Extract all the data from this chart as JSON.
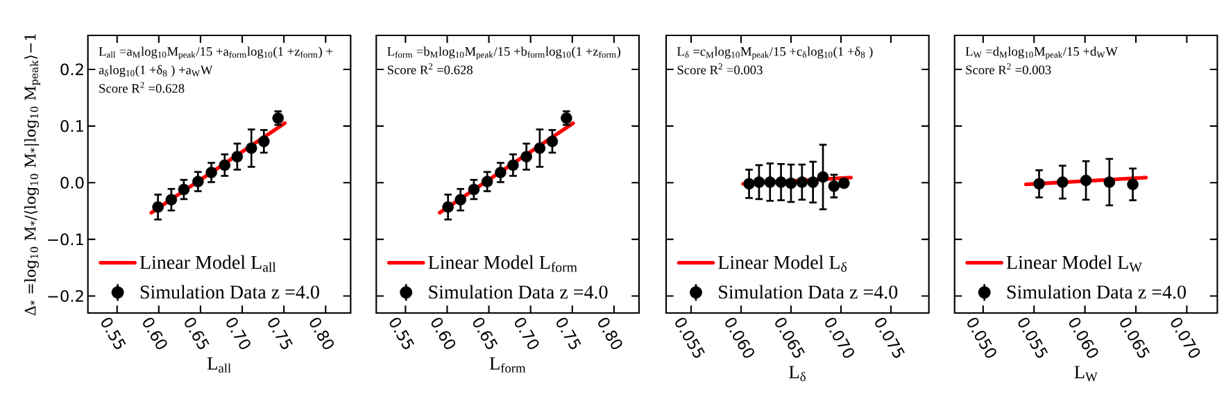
{
  "chart_data": [
    {
      "type": "scatter",
      "xlabel": "L$_{all}$",
      "ylabel": "Δ$_{*}$ =log$_{10}$ M$_{*}$/⟨log$_{10}$ M$_{*}$|log$_{10}$ M$_{peak}$⟩−1",
      "annotations": [
        "L$_{all}$ =a$_{M}$log$_{10}$M$_{peak}$/15 +a$_{form}$log$_{10}$(1 +z$_{form}$) +",
        "a$_{δ}$log$_{10}$(1 +δ$_{8}$ ) +a$_{W}$W",
        "Score R$^{2}$ =0.628"
      ],
      "xlim": [
        0.515,
        0.83
      ],
      "ylim": [
        -0.23,
        0.26
      ],
      "xticks": [
        {
          "value": 0.55,
          "label": "0.55"
        },
        {
          "value": 0.6,
          "label": "0.60"
        },
        {
          "value": 0.65,
          "label": "0.65"
        },
        {
          "value": 0.7,
          "label": "0.70"
        },
        {
          "value": 0.75,
          "label": "0.75"
        },
        {
          "value": 0.8,
          "label": "0.80"
        }
      ],
      "yticks": [
        {
          "value": -0.2,
          "label": "−0.2"
        },
        {
          "value": -0.1,
          "label": "−0.1"
        },
        {
          "value": 0,
          "label": "0.0"
        },
        {
          "value": 0.1,
          "label": "0.1"
        },
        {
          "value": 0.2,
          "label": "0.2"
        }
      ],
      "legend": "bottom left",
      "marker": "circle",
      "series": [
        {
          "name": "Linear Model L$_{all}$",
          "type": "line",
          "marker": "none",
          "color": "#ff0000",
          "x": [
            0.591,
            0.751
          ],
          "values": [
            -0.053,
            0.105
          ]
        },
        {
          "name": "Simulation Data z =4.0",
          "color": "#000000",
          "x": [
            0.599,
            0.615,
            0.63,
            0.647,
            0.663,
            0.679,
            0.694,
            0.711,
            0.726,
            0.743
          ],
          "values": [
            -0.043,
            -0.03,
            -0.012,
            0.002,
            0.018,
            0.031,
            0.046,
            0.061,
            0.073,
            0.114
          ],
          "errors": [
            0.022,
            0.019,
            0.017,
            0.017,
            0.017,
            0.019,
            0.023,
            0.033,
            0.02,
            0.012
          ]
        }
      ]
    },
    {
      "type": "scatter",
      "xlabel": "L$_{form}$",
      "annotations": [
        "L$_{form}$ =b$_{M}$log$_{10}$M$_{peak}$/15 +b$_{form}$log$_{10}$(1 +z$_{form}$)",
        "Score R$^{2}$ =0.628"
      ],
      "xlim": [
        0.515,
        0.83
      ],
      "ylim": [
        -0.23,
        0.26
      ],
      "xticks": [
        {
          "value": 0.55,
          "label": "0.55"
        },
        {
          "value": 0.6,
          "label": "0.60"
        },
        {
          "value": 0.65,
          "label": "0.65"
        },
        {
          "value": 0.7,
          "label": "0.70"
        },
        {
          "value": 0.75,
          "label": "0.75"
        },
        {
          "value": 0.8,
          "label": "0.80"
        }
      ],
      "yticks": [
        {
          "value": -0.2,
          "label": null
        },
        {
          "value": -0.1,
          "label": null
        },
        {
          "value": 0,
          "label": null
        },
        {
          "value": 0.1,
          "label": null
        },
        {
          "value": 0.2,
          "label": null
        }
      ],
      "tick_labels": "x",
      "legend": "bottom left",
      "marker": "circle",
      "series": [
        {
          "name": "Linear Model L$_{form}$",
          "type": "line",
          "marker": "none",
          "color": "#ff0000",
          "x": [
            0.591,
            0.751
          ],
          "values": [
            -0.053,
            0.105
          ]
        },
        {
          "name": "Simulation Data z =4.0",
          "color": "#000000",
          "x": [
            0.601,
            0.616,
            0.632,
            0.648,
            0.664,
            0.679,
            0.695,
            0.711,
            0.726,
            0.743
          ],
          "values": [
            -0.043,
            -0.03,
            -0.012,
            0.002,
            0.018,
            0.031,
            0.046,
            0.061,
            0.073,
            0.114
          ],
          "errors": [
            0.022,
            0.019,
            0.017,
            0.017,
            0.017,
            0.019,
            0.023,
            0.033,
            0.02,
            0.012
          ]
        }
      ]
    },
    {
      "type": "scatter",
      "xlabel": "L$_{δ}$",
      "annotations": [
        "L$_{δ}$ =c$_{M}$log$_{10}$M$_{peak}$/15 +c$_{δ}$log$_{10}$(1 +δ$_{8}$ )",
        "Score R$^{2}$ =0.003"
      ],
      "xlim": [
        0.0525,
        0.0788
      ],
      "ylim": [
        -0.23,
        0.26
      ],
      "xticks": [
        {
          "value": 0.055,
          "label": "0.055"
        },
        {
          "value": 0.06,
          "label": "0.060"
        },
        {
          "value": 0.065,
          "label": "0.065"
        },
        {
          "value": 0.07,
          "label": "0.070"
        },
        {
          "value": 0.075,
          "label": "0.075"
        }
      ],
      "yticks": [
        {
          "value": -0.2,
          "label": null
        },
        {
          "value": -0.1,
          "label": null
        },
        {
          "value": 0,
          "label": null
        },
        {
          "value": 0.1,
          "label": null
        },
        {
          "value": 0.2,
          "label": null
        }
      ],
      "tick_labels": "x",
      "legend": "bottom left",
      "marker": "circle",
      "series": [
        {
          "name": "Linear Model L$_{δ}$",
          "type": "line",
          "marker": "none",
          "color": "#ff0000",
          "x": [
            0.0602,
            0.071
          ],
          "values": [
            -0.002,
            0.009
          ]
        },
        {
          "name": "Simulation Data z =4.0",
          "color": "#000000",
          "x": [
            0.0608,
            0.0618,
            0.0629,
            0.064,
            0.065,
            0.0661,
            0.0672,
            0.0682,
            0.0693,
            0.0703
          ],
          "values": [
            -0.002,
            0.001,
            0.001,
            0.001,
            -0.001,
            0.001,
            0.001,
            0.01,
            -0.006,
            -0.001
          ],
          "errors": [
            0.025,
            0.03,
            0.033,
            0.032,
            0.033,
            0.031,
            0.036,
            0.057,
            0.02,
            0.004
          ]
        }
      ]
    },
    {
      "type": "scatter",
      "xlabel": "L$_{W}$",
      "annotations": [
        "L$_{W}$ =d$_{M}$log$_{10}$M$_{peak}$/15 +d$_{W}$W",
        "Score R$^{2}$ =0.003"
      ],
      "xlim": [
        0.0472,
        0.073
      ],
      "ylim": [
        -0.23,
        0.26
      ],
      "xticks": [
        {
          "value": 0.05,
          "label": "0.050"
        },
        {
          "value": 0.055,
          "label": "0.055"
        },
        {
          "value": 0.06,
          "label": "0.060"
        },
        {
          "value": 0.065,
          "label": "0.065"
        },
        {
          "value": 0.07,
          "label": "0.070"
        }
      ],
      "yticks": [
        {
          "value": -0.2,
          "label": null
        },
        {
          "value": -0.1,
          "label": null
        },
        {
          "value": 0,
          "label": null
        },
        {
          "value": 0.1,
          "label": null
        },
        {
          "value": 0.2,
          "label": null
        }
      ],
      "tick_labels": "x",
      "legend": "bottom left",
      "marker": "circle",
      "series": [
        {
          "name": "Linear Model L$_{W}$",
          "type": "line",
          "marker": "none",
          "color": "#ff0000",
          "x": [
            0.0542,
            0.066
          ],
          "values": [
            -0.003,
            0.009
          ]
        },
        {
          "name": "Simulation Data z =4.0",
          "color": "#000000",
          "x": [
            0.0555,
            0.0578,
            0.0601,
            0.0624,
            0.0647
          ],
          "values": [
            -0.002,
            0.001,
            0.004,
            0.001,
            -0.003
          ],
          "errors": [
            0.024,
            0.029,
            0.034,
            0.041,
            0.028
          ]
        }
      ]
    }
  ]
}
